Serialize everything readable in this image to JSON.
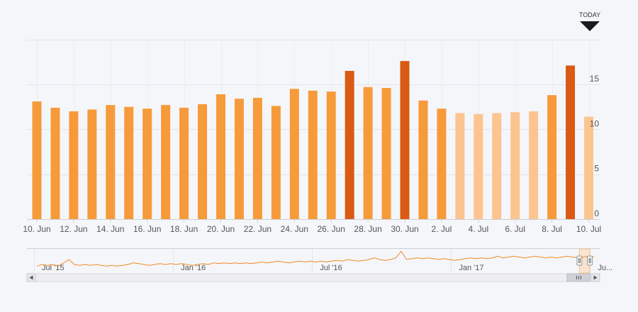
{
  "today_marker": {
    "label": "TODAY"
  },
  "chart_data": {
    "type": "bar",
    "categories": [
      "10 Jun",
      "11 Jun",
      "12 Jun",
      "13 Jun",
      "14 Jun",
      "15 Jun",
      "16 Jun",
      "17 Jun",
      "18 Jun",
      "19 Jun",
      "20 Jun",
      "21 Jun",
      "22 Jun",
      "23 Jun",
      "24 Jun",
      "25 Jun",
      "26 Jun",
      "27 Jun",
      "28 Jun",
      "29 Jun",
      "30 Jun",
      "1 Jul",
      "2 Jul",
      "3 Jul",
      "4 Jul",
      "5 Jul",
      "6 Jul",
      "7 Jul",
      "8 Jul",
      "9 Jul",
      "10 Jul"
    ],
    "values": [
      13.1,
      12.4,
      12.0,
      12.2,
      12.7,
      12.5,
      12.3,
      12.7,
      12.4,
      12.8,
      13.9,
      13.4,
      13.5,
      12.6,
      14.5,
      14.3,
      14.2,
      16.5,
      14.7,
      14.6,
      17.6,
      13.2,
      12.3,
      11.8,
      11.7,
      11.8,
      11.9,
      12.0,
      13.8,
      17.1,
      11.4
    ],
    "bar_kind": [
      "actual",
      "actual",
      "actual",
      "actual",
      "actual",
      "actual",
      "actual",
      "actual",
      "actual",
      "actual",
      "actual",
      "actual",
      "actual",
      "actual",
      "actual",
      "actual",
      "actual",
      "peak",
      "actual",
      "actual",
      "peak",
      "actual",
      "actual",
      "forecast",
      "forecast",
      "forecast",
      "forecast",
      "forecast",
      "actual",
      "peak",
      "forecast"
    ],
    "colors": {
      "actual": "#f79a3a",
      "peak": "#d95a12",
      "forecast": "#fcc48f",
      "navigator_line": "#f08a24",
      "grid": "#e3e4ea"
    },
    "x_tick_labels": [
      "10. Jun",
      "12. Jun",
      "14. Jun",
      "16. Jun",
      "18. Jun",
      "20. Jun",
      "22. Jun",
      "24. Jun",
      "26. Jun",
      "28. Jun",
      "30. Jun",
      "2. Jul",
      "4. Jul",
      "6. Jul",
      "8. Jul",
      "10. Jul"
    ],
    "y_ticks": [
      0,
      5,
      10,
      15
    ],
    "y_tick_labels": [
      "0",
      "5",
      "10",
      "15"
    ],
    "ylim": [
      0,
      20
    ],
    "y_axis_position": "right",
    "grid": true,
    "today_index": 30,
    "navigator": {
      "labels": [
        "Jul '15",
        "Jan '16",
        "Jul '16",
        "Jan '17",
        "Ju..."
      ],
      "label_weeks": [
        0,
        26,
        52,
        78,
        104
      ],
      "total_weeks": 105,
      "selected_range_weeks": [
        102,
        105
      ],
      "series": [
        10,
        11,
        10.5,
        11,
        10,
        12,
        14,
        11,
        10.5,
        11,
        10.5,
        11,
        10.5,
        10,
        10.5,
        10,
        10.5,
        11,
        12,
        11.5,
        11,
        10.5,
        11,
        11.5,
        11,
        11.5,
        11,
        11.5,
        11,
        10.5,
        11,
        11.5,
        11,
        12,
        11.5,
        12,
        11.5,
        12,
        11.5,
        12,
        11.5,
        12,
        12.5,
        12,
        12.5,
        13,
        12.5,
        12,
        12.5,
        13,
        12.5,
        13,
        12.5,
        13,
        12.5,
        13,
        13.5,
        13,
        14,
        13.5,
        13,
        13.5,
        14,
        15,
        14,
        13.5,
        14,
        15,
        19,
        14,
        14.5,
        15,
        14.5,
        15,
        14.5,
        14,
        14.5,
        14,
        13.5,
        14,
        14.5,
        15,
        14.5,
        15,
        14.5,
        15,
        16,
        15,
        15.5,
        16,
        15.5,
        15,
        15.5,
        16,
        15.5,
        15,
        15.5,
        15,
        15.5,
        16,
        15.5,
        15,
        15.5,
        16,
        15.5
      ]
    },
    "scrollbar": {
      "grip_icon": "grip-lines-icon",
      "left_arrow_icon": "arrow-left-icon",
      "right_arrow_icon": "arrow-right-icon"
    }
  }
}
